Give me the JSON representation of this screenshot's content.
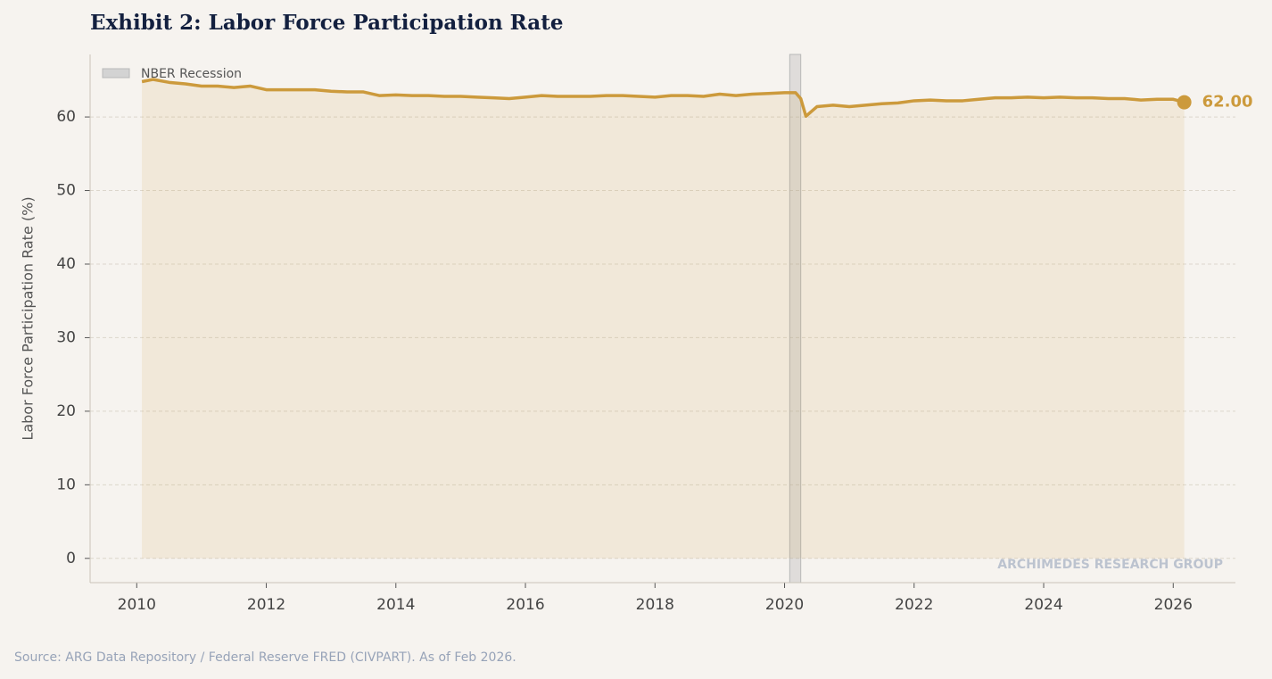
{
  "chart_data": {
    "type": "line",
    "title": "Exhibit 2: Labor Force Participation Rate",
    "y_label": "Labor Force Participation Rate (%)",
    "source": "Source: ARG Data Repository / Federal Reserve FRED (CIVPART). As of Feb 2026.",
    "watermark": "ARCHIMEDES RESEARCH GROUP",
    "x": [
      2010.08,
      2010.25,
      2010.5,
      2010.75,
      2011.0,
      2011.25,
      2011.5,
      2011.75,
      2012.0,
      2012.25,
      2012.5,
      2012.75,
      2013.0,
      2013.25,
      2013.5,
      2013.75,
      2014.0,
      2014.25,
      2014.5,
      2014.75,
      2015.0,
      2015.25,
      2015.5,
      2015.75,
      2016.0,
      2016.25,
      2016.5,
      2016.75,
      2017.0,
      2017.25,
      2017.5,
      2017.75,
      2018.0,
      2018.25,
      2018.5,
      2018.75,
      2019.0,
      2019.25,
      2019.5,
      2019.75,
      2020.0,
      2020.17,
      2020.25,
      2020.33,
      2020.5,
      2020.75,
      2021.0,
      2021.25,
      2021.5,
      2021.75,
      2022.0,
      2022.25,
      2022.5,
      2022.75,
      2023.0,
      2023.25,
      2023.5,
      2023.75,
      2024.0,
      2024.25,
      2024.5,
      2024.75,
      2025.0,
      2025.25,
      2025.5,
      2025.75,
      2026.0,
      2026.17
    ],
    "series": [
      {
        "color": "#cc9a3c",
        "values": [
          64.8,
          65.1,
          64.7,
          64.5,
          64.2,
          64.2,
          64.0,
          64.2,
          63.7,
          63.7,
          63.7,
          63.7,
          63.5,
          63.4,
          63.4,
          62.9,
          63.0,
          62.9,
          62.9,
          62.8,
          62.8,
          62.7,
          62.6,
          62.5,
          62.7,
          62.9,
          62.8,
          62.8,
          62.8,
          62.9,
          62.9,
          62.8,
          62.7,
          62.9,
          62.9,
          62.8,
          63.1,
          62.9,
          63.1,
          63.2,
          63.3,
          63.3,
          62.5,
          60.1,
          61.4,
          61.6,
          61.4,
          61.6,
          61.8,
          61.9,
          62.2,
          62.3,
          62.2,
          62.2,
          62.4,
          62.6,
          62.6,
          62.7,
          62.6,
          62.7,
          62.6,
          62.6,
          62.5,
          62.5,
          62.3,
          62.4,
          62.4,
          62.0
        ],
        "value_labels": [
          null,
          null,
          null,
          null,
          null,
          null,
          null,
          null,
          null,
          null,
          null,
          null,
          null,
          null,
          null,
          null,
          null,
          null,
          null,
          null,
          null,
          null,
          null,
          null,
          null,
          null,
          null,
          null,
          null,
          null,
          null,
          null,
          null,
          null,
          null,
          null,
          null,
          null,
          null,
          null,
          null,
          null,
          null,
          null,
          null,
          null,
          null,
          null,
          null,
          null,
          null,
          null,
          null,
          null,
          null,
          null,
          null,
          null,
          null,
          null,
          null,
          null,
          null,
          null,
          null,
          null,
          null,
          "62.00"
        ]
      }
    ],
    "recessions": [
      {
        "name": "NBER Recession",
        "start": 2020.08,
        "end": 2020.25
      }
    ],
    "xlim": [
      2009.28,
      2026.96
    ],
    "xticks": [
      2010,
      2012,
      2014,
      2016,
      2018,
      2020,
      2022,
      2024,
      2026
    ],
    "ylim": [
      -3.3,
      68.5
    ],
    "yticks": [
      0,
      10,
      20,
      30,
      40,
      50,
      60
    ],
    "grid": true,
    "legend": "upper left"
  }
}
